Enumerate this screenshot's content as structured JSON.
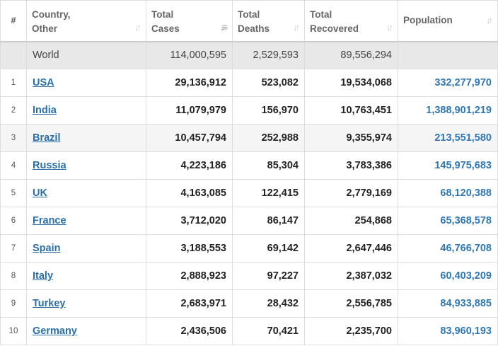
{
  "header": {
    "index": "#",
    "country_line1": "Country,",
    "country_line2": "Other",
    "cases_line1": "Total",
    "cases_line2": "Cases",
    "deaths_line1": "Total",
    "deaths_line2": "Deaths",
    "recovered_line1": "Total",
    "recovered_line2": "Recovered",
    "population": "Population",
    "sort_glyph": "↓↑",
    "sort_active_glyph": "↓≡"
  },
  "world": {
    "label": "World",
    "total_cases": "114,000,595",
    "total_deaths": "2,529,593",
    "total_recovered": "89,556,294",
    "population": ""
  },
  "rows": [
    {
      "idx": "1",
      "country": "USA",
      "cases": "29,136,912",
      "deaths": "523,082",
      "recovered": "19,534,068",
      "population": "332,277,970"
    },
    {
      "idx": "2",
      "country": "India",
      "cases": "11,079,979",
      "deaths": "156,970",
      "recovered": "10,763,451",
      "population": "1,388,901,219"
    },
    {
      "idx": "3",
      "country": "Brazil",
      "cases": "10,457,794",
      "deaths": "252,988",
      "recovered": "9,355,974",
      "population": "213,551,580"
    },
    {
      "idx": "4",
      "country": "Russia",
      "cases": "4,223,186",
      "deaths": "85,304",
      "recovered": "3,783,386",
      "population": "145,975,683"
    },
    {
      "idx": "5",
      "country": "UK",
      "cases": "4,163,085",
      "deaths": "122,415",
      "recovered": "2,779,169",
      "population": "68,120,388"
    },
    {
      "idx": "6",
      "country": "France",
      "cases": "3,712,020",
      "deaths": "86,147",
      "recovered": "254,868",
      "population": "65,368,578"
    },
    {
      "idx": "7",
      "country": "Spain",
      "cases": "3,188,553",
      "deaths": "69,142",
      "recovered": "2,647,446",
      "population": "46,766,708"
    },
    {
      "idx": "8",
      "country": "Italy",
      "cases": "2,888,923",
      "deaths": "97,227",
      "recovered": "2,387,032",
      "population": "60,403,209"
    },
    {
      "idx": "9",
      "country": "Turkey",
      "cases": "2,683,971",
      "deaths": "28,432",
      "recovered": "2,556,785",
      "population": "84,933,885"
    },
    {
      "idx": "10",
      "country": "Germany",
      "cases": "2,436,506",
      "deaths": "70,421",
      "recovered": "2,235,700",
      "population": "83,960,193"
    }
  ],
  "colors": {
    "link": "#2a6fa8",
    "population": "#2f78b5",
    "world_row_bg": "#e8e8e8",
    "striped_row_bg": "#f5f5f5"
  }
}
